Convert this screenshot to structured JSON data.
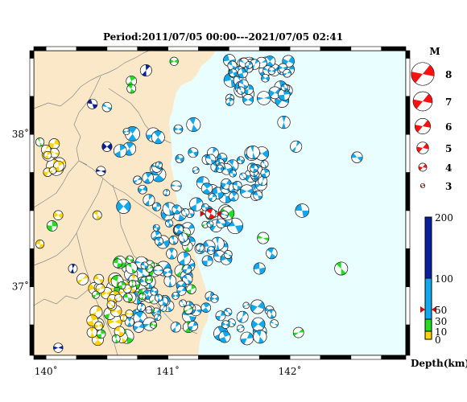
{
  "title": "Period:2011/07/05 00:00---2021/07/05 02:41",
  "colors": {
    "land": "#fbe8c8",
    "sea": "#e8feff",
    "depth_0_10": "#ffd400",
    "depth_10_30": "#22dd22",
    "depth_30_100": "#11a8f0",
    "depth_100_200": "#0a1ea0",
    "mainshock": "#ff1010"
  },
  "map": {
    "lon_range": [
      139.9,
      142.95
    ],
    "lat_range": [
      36.55,
      38.55
    ],
    "lon_ticks": [
      {
        "value": 140,
        "label": "140˚"
      },
      {
        "value": 141,
        "label": "141˚"
      },
      {
        "value": 142,
        "label": "142˚"
      }
    ],
    "lat_ticks": [
      {
        "value": 38,
        "label": "38˚"
      },
      {
        "value": 37,
        "label": "37˚"
      }
    ]
  },
  "magnitude_legend": {
    "title": "M",
    "items": [
      {
        "label": "8",
        "value": 8
      },
      {
        "label": "7",
        "value": 7
      },
      {
        "label": "6",
        "value": 6
      },
      {
        "label": "5",
        "value": 5
      },
      {
        "label": "4",
        "value": 4
      },
      {
        "label": "3",
        "value": 3
      }
    ]
  },
  "depth_scale": {
    "title": "Depth(km)",
    "max": 200,
    "labels": [
      {
        "label": "200",
        "value": 200
      },
      {
        "label": "100",
        "value": 100
      },
      {
        "label": "50",
        "value": 50
      },
      {
        "label": "30",
        "value": 30
      },
      {
        "label": "10",
        "value": 10
      },
      {
        "label": "0",
        "value": 0
      }
    ],
    "marker_depth": 40
  }
}
